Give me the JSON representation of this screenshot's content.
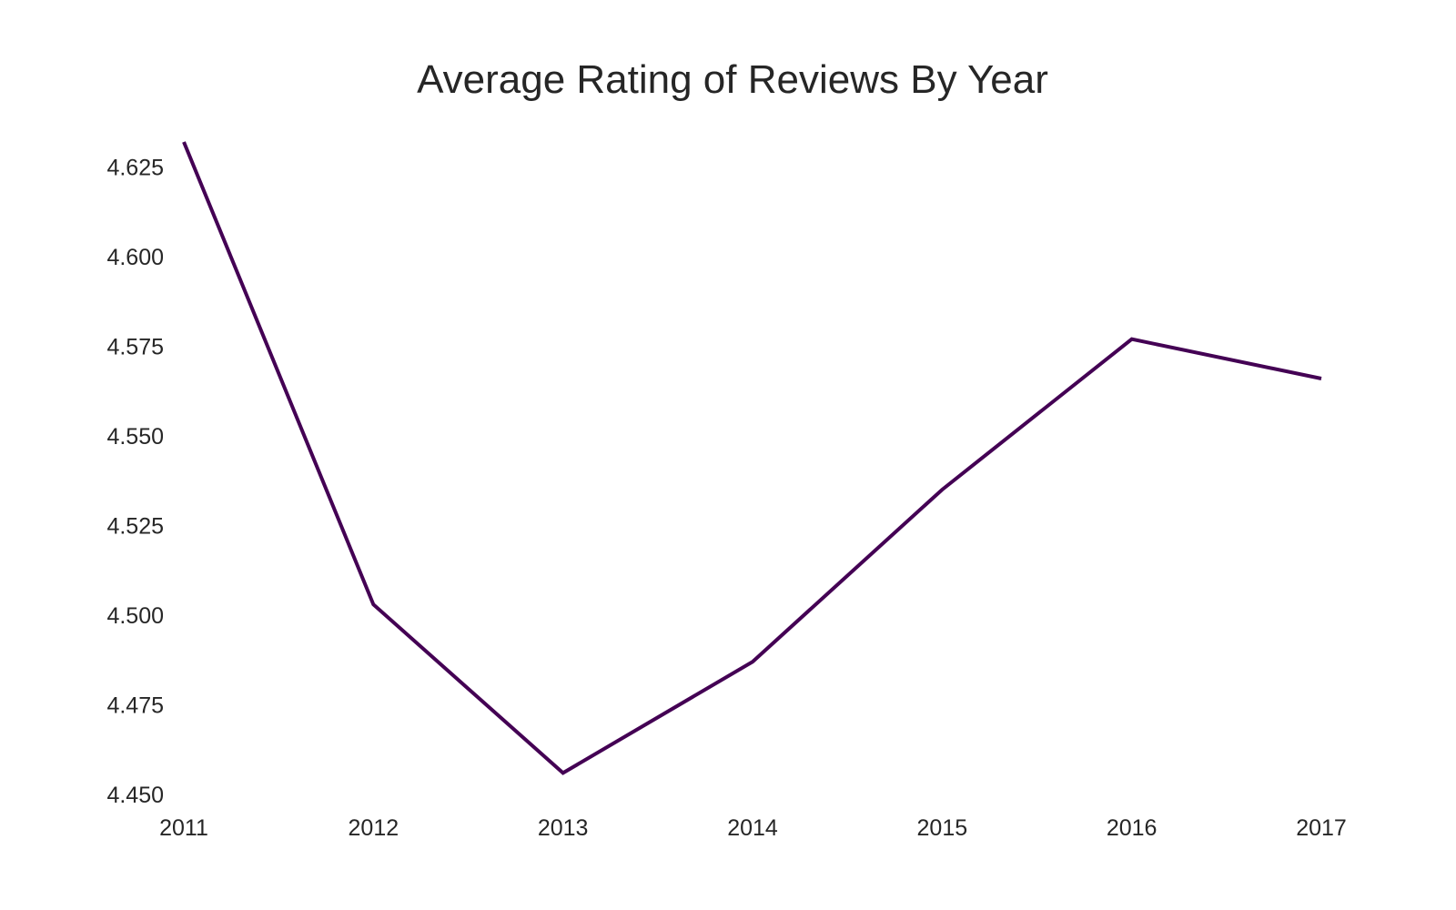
{
  "chart_data": {
    "type": "line",
    "title": "Average Rating of Reviews By Year",
    "xlabel": "",
    "ylabel": "",
    "x": [
      2011,
      2012,
      2013,
      2014,
      2015,
      2016,
      2017
    ],
    "series": [
      {
        "values": [
          4.632,
          4.503,
          4.456,
          4.487,
          4.535,
          4.577,
          4.566
        ],
        "color": "#440154"
      }
    ],
    "x_ticks": [
      "2011",
      "2012",
      "2013",
      "2014",
      "2015",
      "2016",
      "2017"
    ],
    "y_ticks": [
      "4.450",
      "4.475",
      "4.500",
      "4.525",
      "4.550",
      "4.575",
      "4.600",
      "4.625"
    ],
    "xlim": [
      2011,
      2017
    ],
    "ylim": [
      4.45,
      4.632
    ],
    "grid": false,
    "legend": false
  }
}
